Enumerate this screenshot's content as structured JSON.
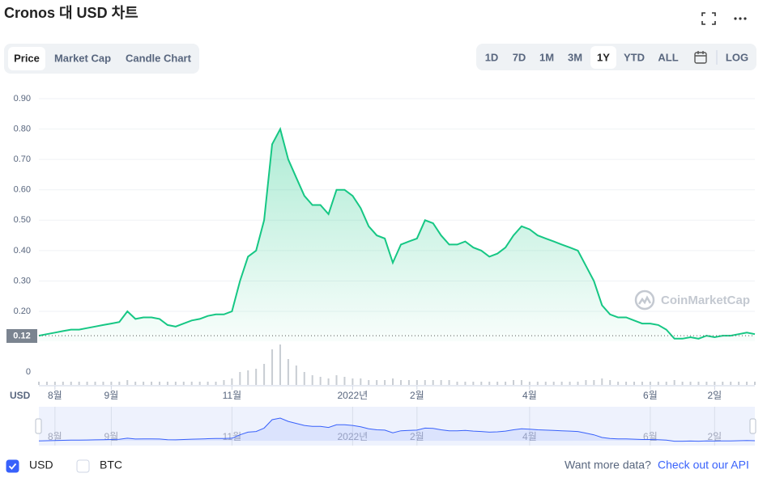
{
  "header": {
    "title": "Cronos 대 USD 차트"
  },
  "tabs": [
    "Price",
    "Market Cap",
    "Candle Chart"
  ],
  "active_tab": 0,
  "ranges": [
    "1D",
    "7D",
    "1M",
    "3M",
    "1Y",
    "YTD",
    "ALL"
  ],
  "active_range": 4,
  "log_button": "LOG",
  "watermark": "CoinMarketCap",
  "footer": {
    "prompt": "Want more data?",
    "link": "Check out our API"
  },
  "chart_data": {
    "type": "line",
    "currency_label": "USD",
    "categories": [
      null,
      null,
      "8월",
      null,
      null,
      null,
      null,
      null,
      null,
      "9월",
      null,
      null,
      null,
      null,
      null,
      null,
      null,
      null,
      null,
      null,
      null,
      null,
      null,
      null,
      "11월",
      null,
      null,
      null,
      null,
      null,
      null,
      null,
      null,
      null,
      null,
      null,
      null,
      null,
      null,
      "2022년",
      null,
      null,
      null,
      null,
      null,
      null,
      null,
      "2월",
      null,
      null,
      null,
      null,
      null,
      null,
      null,
      null,
      null,
      null,
      null,
      null,
      null,
      "4월",
      null,
      null,
      null,
      null,
      null,
      null,
      null,
      null,
      null,
      null,
      null,
      null,
      null,
      null,
      "6월",
      null,
      null,
      null,
      null,
      null,
      null,
      null,
      "2일",
      null,
      null,
      null,
      null,
      null
    ],
    "series": [
      {
        "name": "USD",
        "color": "#16c784",
        "values": [
          0.12,
          0.125,
          0.13,
          0.135,
          0.14,
          0.14,
          0.145,
          0.15,
          0.155,
          0.16,
          0.165,
          0.2,
          0.175,
          0.18,
          0.18,
          0.175,
          0.155,
          0.15,
          0.16,
          0.17,
          0.175,
          0.185,
          0.19,
          0.19,
          0.2,
          0.3,
          0.38,
          0.4,
          0.5,
          0.75,
          0.8,
          0.7,
          0.64,
          0.58,
          0.55,
          0.55,
          0.52,
          0.6,
          0.6,
          0.58,
          0.54,
          0.48,
          0.45,
          0.44,
          0.36,
          0.42,
          0.43,
          0.44,
          0.5,
          0.49,
          0.45,
          0.42,
          0.42,
          0.43,
          0.41,
          0.4,
          0.38,
          0.39,
          0.41,
          0.45,
          0.48,
          0.47,
          0.45,
          0.44,
          0.43,
          0.42,
          0.41,
          0.4,
          0.35,
          0.3,
          0.22,
          0.19,
          0.18,
          0.18,
          0.17,
          0.16,
          0.16,
          0.155,
          0.14,
          0.11,
          0.11,
          0.115,
          0.11,
          0.12,
          0.115,
          0.12,
          0.12,
          0.125,
          0.13,
          0.125
        ]
      },
      {
        "name": "Volume",
        "color": "#c8cdd3",
        "axis": "y2",
        "values": [
          0.2,
          0.2,
          0.2,
          0.2,
          0.2,
          0.2,
          0.2,
          0.2,
          0.2,
          0.2,
          0.2,
          0.3,
          0.2,
          0.2,
          0.2,
          0.2,
          0.2,
          0.2,
          0.2,
          0.2,
          0.2,
          0.2,
          0.2,
          0.3,
          0.4,
          0.8,
          0.9,
          1.0,
          1.3,
          2.2,
          2.5,
          1.6,
          1.2,
          0.8,
          0.6,
          0.5,
          0.4,
          0.6,
          0.5,
          0.4,
          0.4,
          0.3,
          0.3,
          0.3,
          0.4,
          0.3,
          0.3,
          0.3,
          0.3,
          0.3,
          0.3,
          0.3,
          0.2,
          0.2,
          0.2,
          0.2,
          0.2,
          0.2,
          0.2,
          0.3,
          0.3,
          0.2,
          0.2,
          0.2,
          0.2,
          0.2,
          0.2,
          0.2,
          0.3,
          0.3,
          0.4,
          0.3,
          0.2,
          0.2,
          0.2,
          0.2,
          0.2,
          0.2,
          0.2,
          0.3,
          0.2,
          0.2,
          0.2,
          0.2,
          0.2,
          0.2,
          0.2,
          0.2,
          0.2,
          0.2
        ]
      }
    ],
    "ylim": [
      0.1,
      0.92
    ],
    "yticks": [
      {
        "value": 0.2,
        "label": "0.20"
      },
      {
        "value": 0.3,
        "label": "0.30"
      },
      {
        "value": 0.4,
        "label": "0.40"
      },
      {
        "value": 0.5,
        "label": "0.50"
      },
      {
        "value": 0.6,
        "label": "0.60"
      },
      {
        "value": 0.7,
        "label": "0.70"
      },
      {
        "value": 0.8,
        "label": "0.80"
      },
      {
        "value": 0.9,
        "label": "0.90"
      }
    ],
    "y2lim": [
      0,
      2.8
    ],
    "y2ticks": [
      0
    ],
    "last_price": {
      "value": 0.12,
      "label": "0.12"
    },
    "grid": true,
    "legend": [
      {
        "name": "USD",
        "checked": true
      },
      {
        "name": "BTC",
        "checked": false
      }
    ]
  }
}
